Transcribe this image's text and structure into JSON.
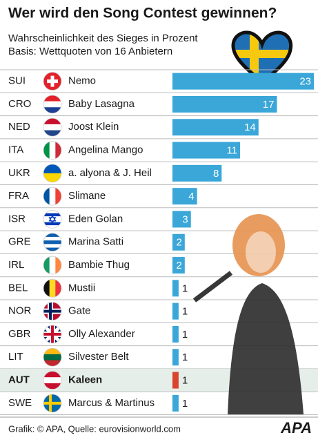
{
  "chart_data": {
    "type": "bar",
    "title": "Wer wird den Song Contest gewinnen?",
    "subtitle": [
      "Wahrscheinlichkeit des Sieges in Prozent",
      "Basis: Wettquoten von 16 Anbietern"
    ],
    "categories": [
      "SUI",
      "CRO",
      "NED",
      "ITA",
      "UKR",
      "FRA",
      "ISR",
      "GRE",
      "IRL",
      "BEL",
      "NOR",
      "GBR",
      "LIT",
      "AUT",
      "SWE"
    ],
    "artists": [
      "Nemo",
      "Baby Lasagna",
      "Joost Klein",
      "Angelina Mango",
      "a. alyona & J. Heil",
      "Slimane",
      "Eden Golan",
      "Marina Satti",
      "Bambie Thug",
      "Mustii",
      "Gate",
      "Olly Alexander",
      "Silvester Belt",
      "Kaleen",
      "Marcus & Martinus"
    ],
    "values": [
      23,
      17,
      14,
      11,
      8,
      4,
      3,
      2,
      2,
      1,
      1,
      1,
      1,
      1,
      1
    ],
    "color": "#3aa7d8",
    "highlight_index": 13,
    "highlight_color": "#d9442e",
    "source": "Grafik: © APA, Quelle: eurovisionworld.com",
    "logo": "APA"
  }
}
